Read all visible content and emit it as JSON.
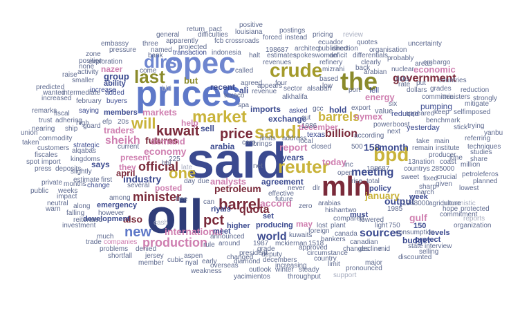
{
  "colors": {
    "navy": "#3b4a8f",
    "blue": "#5e78c8",
    "olive": "#8a8a2a",
    "mustard": "#c9b33a",
    "maroon": "#7a2a3a",
    "pink": "#cf7fb0",
    "grey": "#8a90a0",
    "light": "#a8aec0"
  },
  "words": {
    "said": "said",
    "oil": "oil",
    "prices": "prices",
    "opec": "opec",
    "mln": "mln",
    "the": "the",
    "crude": "crude",
    "bpd": "bpd",
    "saudi": "saudi",
    "market": "market",
    "reuter": "reuter",
    "last": "last",
    "dlrs": "dlrs",
    "one": "one",
    "kuwait": "kuwait",
    "barrel": "barrel",
    "price": "price",
    "minister": "minister",
    "official": "official",
    "production": "production",
    "new": "new",
    "will": "will",
    "government": "government",
    "barrels": "barrels",
    "pct": "pct",
    "sheikh": "sheikh",
    "futures": "futures",
    "meeting": "meeting",
    "world": "world",
    "sources": "sources",
    "output": "output",
    "billion": "billion",
    "month": "month",
    "january": "january",
    "quota": "quota",
    "petroleum": "petroleum",
    "december": "december",
    "economy": "economy",
    "demand": "demand",
    "accord": "accord",
    "analysts": "analysts",
    "industry": "industry",
    "international": "international",
    "report": "report",
    "nymex": "nymex",
    "energy": "energy",
    "gulf": "gulf",
    "today": "today",
    "economic": "economic",
    "markets": "markets",
    "traders": "traders",
    "group": "group",
    "also": "also",
    "but": "but",
    "help": "help",
    "recent": "recent",
    "imports": "imports",
    "ali": "ali",
    "hold": "hold",
    "sell": "sell",
    "arabia": "arabia",
    "agreement": "agreement",
    "years": "years",
    "april": "april",
    "says": "says",
    "may": "may",
    "posted": "posted",
    "present": "present",
    "they": "they",
    "emergency": "emergency",
    "members": "members",
    "exchange": "exchange",
    "budget": "budget",
    "development": "development",
    "riyals": "riyals",
    "meet": "meet",
    "higher": "higher",
    "producing": "producing",
    "set": "set",
    "levels": "levels",
    "protect": "protect",
    "must": "must",
    "policy": "policy",
    "week": "week",
    "nazer": "nazer",
    "ability": "ability",
    "exploration": "exploration",
    "increase": "increase",
    "added": "added",
    "buyers": "buyers",
    "saying": "saying",
    "strategic": "strategic",
    "change": "change",
    "first": "first",
    "trade": "trade",
    "free": "free",
    "lost": "lost",
    "plant": "plant",
    "158": "158",
    "n150": "150",
    "strongly": "strongly",
    "reduction": "reduction",
    "ministers": "ministers",
    "pumping": "pumping",
    "reduced": "reduced",
    "yesterday": "yesterday",
    "value": "value",
    "fell": "fell",
    "texas": "texas",
    "closed": "closed",
    "gcc": "gcc",
    "asked": "asked",
    "spa": "spa",
    "revenue": "revenue",
    "transaction": "transaction",
    "revenues": "revenues",
    "posting": "postings",
    "forced": "forced",
    "instead": "instead",
    "pricing": "pricing",
    "review": "review",
    "positive": "positive",
    "louisiana": "louisiana",
    "return": "return",
    "pact": "pact",
    "general": "general",
    "difficulties": "difficulties",
    "apparently": "apparently",
    "fcb": "fcb",
    "crossroads": "crossroads",
    "embassy": "embassy",
    "three": "three",
    "uncertainty": "uncertainty",
    "quotes": "quotes",
    "ecuador": "ecuador",
    "probably": "probably",
    "humanistic": "humanistic",
    "yanbu": "yanbu",
    "techniques": "techniques",
    "organization": "organization",
    "commitment": "commitment",
    "hope": "hope",
    "protected": "protected",
    "reports": "reports",
    "planned": "planned",
    "lowest": "lowest",
    "studies": "studies",
    "share": "share",
    "million": "million",
    "petroleferos": "petroleferos",
    "referring": "referring",
    "stick": "stick",
    "trying": "trying",
    "selfimposed": "selfimposed",
    "mitigate": "mitigate",
    "countries": "countries",
    "canada": "canada",
    "canadian": "canadian",
    "bankers": "bankers",
    "mckiernan": "mckiernan",
    "kuwaits": "kuwaits",
    "circumstance": "circumstance",
    "decline": "decline",
    "consumption": "consumption",
    "discounted": "discounted",
    "pronounced": "pronounced",
    "major": "major",
    "support": "support",
    "throughput": "throughput",
    "steady": "steady",
    "yacimientos": "yacimientos",
    "outlook": "outlook",
    "winter": "winter",
    "weakness": "weakness",
    "overseas": "overseas",
    "diamond": "diamond",
    "decembers": "decembers",
    "president": "president",
    "increasing": "increasing",
    "announced": "announced",
    "changed": "changed",
    "aspen": "aspen",
    "nyal": "nyal",
    "cubic": "cubic",
    "member": "member",
    "jersey": "jersey",
    "shortfall": "shortfall",
    "problems": "problems",
    "companies": "companies",
    "denied": "denied",
    "investment": "investment",
    "reiterated": "reiterated",
    "falling": "falling",
    "neutral": "neutral",
    "warn": "warn",
    "public": "public",
    "impact": "impact",
    "weeks": "weeks",
    "private": "private",
    "months": "months",
    "press": "press",
    "deposits": "deposits",
    "spot": "spot",
    "import": "import",
    "kingdoms": "kingdoms",
    "estimate": "estimate",
    "taken": "taken",
    "customers": "customers",
    "commodity": "commodity",
    "fiscales": "fiscales",
    "union": "union",
    "nearing": "nearing",
    "remarks": "remarks",
    "increased": "increased",
    "wanted": "wanted",
    "predicted": "predicted",
    "raise": "raise",
    "smaller": "smaller",
    "intermediate": "intermediate",
    "february": "february",
    "fiscal": "fiscal",
    "trust": "trust",
    "adhering": "adhering",
    "ship": "ship",
    "guard": "guard",
    "high": "high",
    "zone": "zone",
    "position": "position",
    "activity": "activity",
    "pressure": "pressure",
    "named": "named",
    "bank": "bank",
    "come": "come",
    "projected": "projected",
    "indonesia": "indonesia",
    "halt": "halt",
    "estimates": "estimates",
    "architect": "architect",
    "spokeswoman": "spokeswoman",
    "refinery": "refinery",
    "arabian": "arabian",
    "clearly": "clearly",
    "mizrahi": "mizrahi",
    "back": "back",
    "nuclear": "nuclear",
    "embargo": "embargo",
    "areas": "areas",
    "grades": "grades",
    "committee": "committee",
    "dollars": "dollars",
    "put": "put",
    "rate": "rate",
    "risks": "risks",
    "alsabah": "alsabah",
    "sector": "sector",
    "appears": "appears",
    "agreed": "agreed",
    "four": "four",
    "alkhalifa": "alkhalifa",
    "based": "based",
    "low": "low",
    "port": "port",
    "export": "export",
    "called": "called",
    "crude2": "1986",
    "according": "according",
    "power": "power",
    "benchmark": "benchmark",
    "appeared": "appeared",
    "keep": "keep",
    "take": "take",
    "main": "main",
    "remain": "remain",
    "institute": "institute",
    "producer": "producer",
    "coast": "coast",
    "crucial": "crucial",
    "given": "given",
    "fixed": "fixed",
    "agriculture": "agriculture",
    "sharp": "sharp",
    "march": "march",
    "sweet": "sweet",
    "light": "light",
    "state": "state",
    "interview": "interview",
    "selling": "selling",
    "mid": "mid",
    "changes": "changes",
    "bbl": "bbl",
    "rule": "rule",
    "around": "around",
    "grade": "grade",
    "deputy": "deputy",
    "limit": "limit",
    "country": "country",
    "foreign": "foreign",
    "approved": "approved",
    "zero": "zero",
    "never": "never",
    "future": "future",
    "effective": "effective",
    "dlr": "dlr",
    "arabias": "arabias",
    "hisham": "hisham",
    "two": "two",
    "compared": "compared",
    "lowered": "lowered",
    "rise": "rise",
    "total": "total",
    "day": "day",
    "due": "due",
    "can": "can",
    "late": "late",
    "several": "several",
    "among": "among",
    "however": "however",
    "along": "along",
    "brings": "brings",
    "corp": "corp",
    "address": "address",
    "texaco": "texaco",
    "local": "local",
    "cut": "cut",
    "limits": "limits",
    "much": "much",
    "cash": "cash",
    "slightly": "slightly",
    "alqabas": "alqabas",
    "current": "current",
    "efp": "efp",
    "20s": "20s",
    "none": "none",
    "organisation": "organisation",
    "differentials": "differentials",
    "published": "published",
    "direction": "direction",
    "deficit": "deficit",
    "contract": "contract",
    "398": "198687",
    "n198687b": "198687",
    "n1985": "1985",
    "n1987": "1987",
    "n1518": "1518",
    "n1948000": "1948000",
    "n285000": "285000",
    "n750": "750",
    "n500": "500",
    "n225": "225",
    "n13nation": "13nation",
    "countrys": "countrys",
    "june": "june",
    "inc": "inc",
    "bbi": "bbi",
    "six": "six",
    "net": "net",
    "next": "next",
    "boost": "boost",
    "early": "early",
    "open": "open"
  }
}
